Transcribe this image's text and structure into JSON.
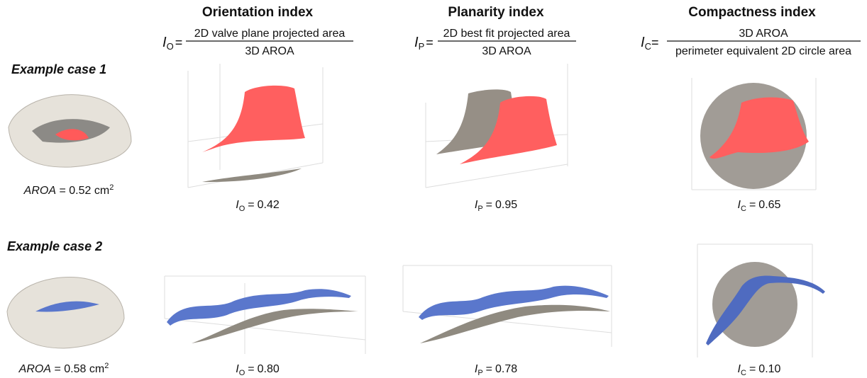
{
  "columns": [
    {
      "title": "Orientation index",
      "formula": {
        "symbol": "I",
        "subscript": "O",
        "equals": "=",
        "numerator": "2D valve plane projected area",
        "denominator": "3D AROA"
      }
    },
    {
      "title": "Planarity index",
      "formula": {
        "symbol": "I",
        "subscript": "P",
        "equals": "=",
        "numerator": "2D best fit projected area",
        "denominator": "3D AROA"
      }
    },
    {
      "title": "Compactness index",
      "formula": {
        "symbol": "I",
        "subscript": "C",
        "equals": "=",
        "numerator": "3D AROA",
        "denominator": "perimeter equivalent 2D circle area"
      }
    }
  ],
  "rows": [
    {
      "label": "Example case 1",
      "aroa": {
        "symbol": "AROA",
        "equals": "=",
        "value": "0.52",
        "unit": "cm",
        "exponent": "2"
      },
      "results": [
        {
          "symbol": "I",
          "subscript": "O",
          "equals": "=",
          "value": "0.42"
        },
        {
          "symbol": "I",
          "subscript": "P",
          "equals": "=",
          "value": "0.95"
        },
        {
          "symbol": "I",
          "subscript": "C",
          "equals": "=",
          "value": "0.65"
        }
      ]
    },
    {
      "label": "Example case 2",
      "aroa": {
        "symbol": "AROA",
        "equals": "=",
        "value": "0.58",
        "unit": "cm",
        "exponent": "2"
      },
      "results": [
        {
          "symbol": "I",
          "subscript": "O",
          "equals": "=",
          "value": "0.80"
        },
        {
          "symbol": "I",
          "subscript": "P",
          "equals": "=",
          "value": "0.78"
        },
        {
          "symbol": "I",
          "subscript": "C",
          "equals": "=",
          "value": "0.10"
        }
      ]
    }
  ]
}
